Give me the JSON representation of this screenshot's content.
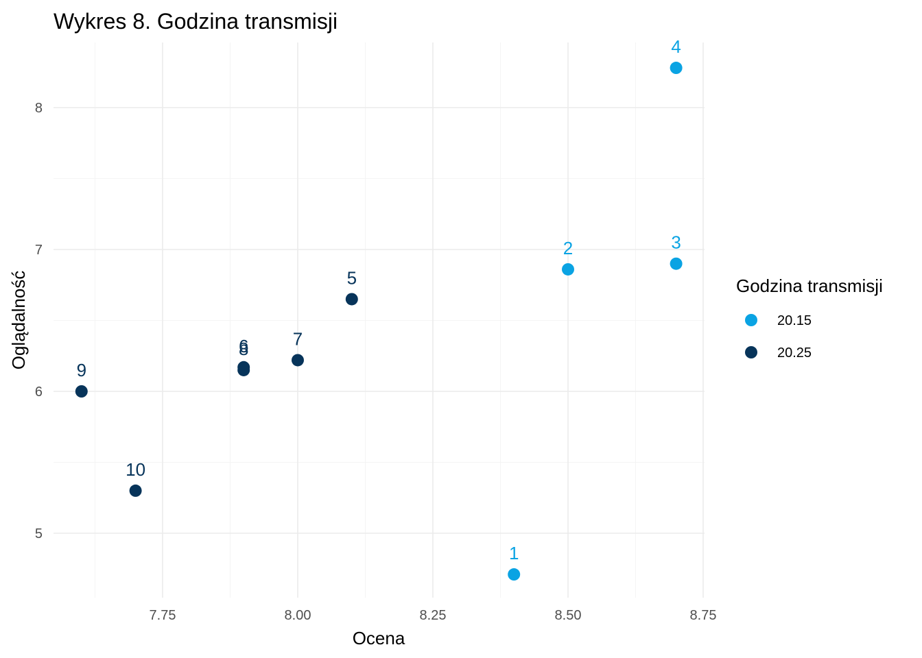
{
  "chart_data": {
    "type": "scatter",
    "title": "Wykres 8. Godzina transmisji",
    "xlabel": "Ocena",
    "ylabel": "Oglądalność",
    "xlim": [
      7.6,
      8.7
    ],
    "ylim": [
      4.7,
      8.27
    ],
    "x_ticks": [
      {
        "value": 7.75,
        "label": "7.75"
      },
      {
        "value": 8.0,
        "label": "8.00"
      },
      {
        "value": 8.25,
        "label": "8.25"
      },
      {
        "value": 8.5,
        "label": "8.50"
      },
      {
        "value": 8.75,
        "label": "8.75"
      }
    ],
    "y_ticks": [
      {
        "value": 5,
        "label": "5"
      },
      {
        "value": 6,
        "label": "6"
      },
      {
        "value": 7,
        "label": "7"
      },
      {
        "value": 8,
        "label": "8"
      }
    ],
    "grid": true,
    "legend": {
      "title": "Godzina transmisji",
      "placement": "right",
      "entries": [
        {
          "label": "20.15",
          "color": "#0aa3e3"
        },
        {
          "label": "20.25",
          "color": "#07345a"
        }
      ]
    },
    "series": [
      {
        "name": "20.15",
        "color": "#0aa3e3",
        "points": [
          {
            "label": "1",
            "x": 8.4,
            "y": 4.71
          },
          {
            "label": "2",
            "x": 8.5,
            "y": 6.86
          },
          {
            "label": "3",
            "x": 8.7,
            "y": 6.9
          },
          {
            "label": "4",
            "x": 8.7,
            "y": 8.28
          }
        ]
      },
      {
        "name": "20.25",
        "color": "#07345a",
        "points": [
          {
            "label": "5",
            "x": 8.1,
            "y": 6.65
          },
          {
            "label": "6",
            "x": 7.9,
            "y": 6.17
          },
          {
            "label": "8",
            "x": 7.9,
            "y": 6.15
          },
          {
            "label": "7",
            "x": 8.0,
            "y": 6.22
          },
          {
            "label": "9",
            "x": 7.6,
            "y": 6.0
          },
          {
            "label": "10",
            "x": 7.7,
            "y": 5.3
          }
        ]
      }
    ]
  }
}
